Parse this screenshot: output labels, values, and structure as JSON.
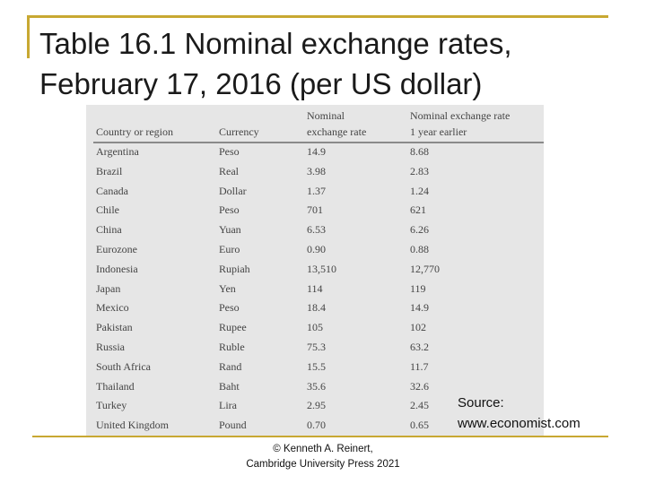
{
  "title": {
    "line1": "Table 16.1 Nominal exchange rates,",
    "line2": "February 17, 2016 (per US dollar)"
  },
  "table": {
    "headers": {
      "country": "Country or region",
      "currency": "Currency",
      "nominal_line1": "Nominal",
      "nominal_line2": "exchange rate",
      "year_earlier_line1": "Nominal exchange rate",
      "year_earlier_line2": "1 year earlier"
    },
    "rows": [
      [
        "Argentina",
        "Peso",
        "14.9",
        "8.68"
      ],
      [
        "Brazil",
        "Real",
        "3.98",
        "2.83"
      ],
      [
        "Canada",
        "Dollar",
        "1.37",
        "1.24"
      ],
      [
        "Chile",
        "Peso",
        "701",
        "621"
      ],
      [
        "China",
        "Yuan",
        "6.53",
        "6.26"
      ],
      [
        "Eurozone",
        "Euro",
        "0.90",
        "0.88"
      ],
      [
        "Indonesia",
        "Rupiah",
        "13,510",
        "12,770"
      ],
      [
        "Japan",
        "Yen",
        "114",
        "119"
      ],
      [
        "Mexico",
        "Peso",
        "18.4",
        "14.9"
      ],
      [
        "Pakistan",
        "Rupee",
        "105",
        "102"
      ],
      [
        "Russia",
        "Ruble",
        "75.3",
        "63.2"
      ],
      [
        "South Africa",
        "Rand",
        "15.5",
        "11.7"
      ],
      [
        "Thailand",
        "Baht",
        "35.6",
        "32.6"
      ],
      [
        "Turkey",
        "Lira",
        "2.95",
        "2.45"
      ],
      [
        "United Kingdom",
        "Pound",
        "0.70",
        "0.65"
      ]
    ]
  },
  "source": {
    "label": "Source:",
    "url": "www.economist.com"
  },
  "footer": {
    "line1": "© Kenneth A. Reinert,",
    "line2": "Cambridge University Press 2021"
  }
}
